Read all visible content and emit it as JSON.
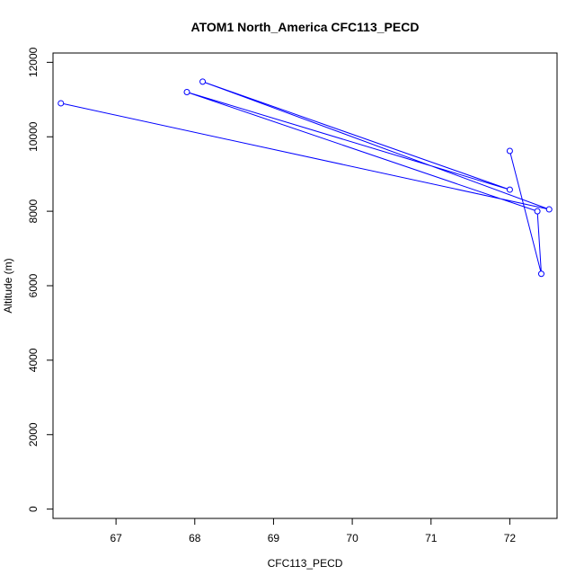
{
  "chart_data": {
    "type": "line",
    "title": "ATOM1 North_America CFC113_PECD",
    "xlabel": "CFC113_PECD",
    "ylabel": "Altitude (m)",
    "xlim": [
      66.2,
      72.6
    ],
    "ylim": [
      -250,
      12250
    ],
    "x_ticks": [
      67,
      68,
      69,
      70,
      71,
      72
    ],
    "y_ticks": [
      0,
      2000,
      4000,
      6000,
      8000,
      10000,
      12000
    ],
    "grid": false,
    "legend": "none",
    "series": [
      {
        "color": "#0000ff",
        "markers": "open-circle",
        "points": [
          {
            "x": 72.0,
            "y": 9620
          },
          {
            "x": 72.4,
            "y": 6320
          },
          {
            "x": 72.35,
            "y": 8000
          },
          {
            "x": 67.9,
            "y": 11200
          },
          {
            "x": 72.0,
            "y": 8580
          },
          {
            "x": 68.1,
            "y": 11480
          },
          {
            "x": 72.5,
            "y": 8050
          },
          {
            "x": 66.3,
            "y": 10900
          }
        ]
      }
    ]
  }
}
